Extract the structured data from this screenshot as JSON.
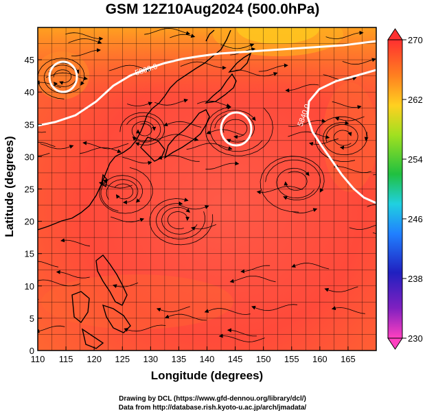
{
  "title": "GSM 12Z10Aug2024 (500.0hPa)",
  "x_axis": {
    "label": "Longitude (degrees)",
    "range": [
      110,
      170
    ],
    "ticks": [
      "110",
      "115",
      "120",
      "125",
      "130",
      "135",
      "140",
      "145",
      "150",
      "155",
      "160",
      "165"
    ]
  },
  "y_axis": {
    "label": "Latitude  (degrees)",
    "range": [
      0,
      50
    ],
    "ticks": [
      "0",
      "5",
      "10",
      "15",
      "20",
      "25",
      "30",
      "35",
      "40",
      "45"
    ]
  },
  "colorbar": {
    "range": [
      230,
      270
    ],
    "ticks": [
      "230",
      "238",
      "246",
      "254",
      "262",
      "270"
    ]
  },
  "contours": [
    {
      "label": "5800.0",
      "color": "#ffffff"
    },
    {
      "label": "5840.0",
      "color": "#ffffff"
    }
  ],
  "credits": [
    "Drawing by DCL (https://www.gfd-dennou.org/library/dcl/)",
    "Data from http://database.rish.kyoto-u.ac.jp/arch/jmadata/"
  ]
}
